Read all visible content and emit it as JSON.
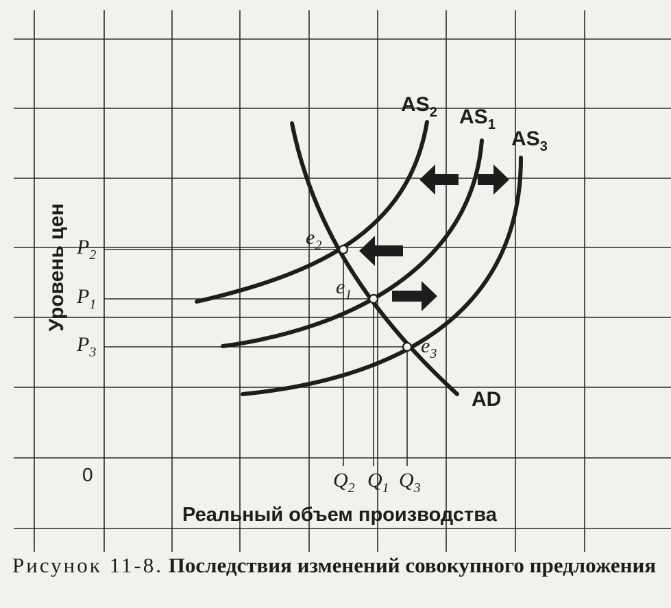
{
  "y_axis_label": "Уровень цен",
  "x_axis_label": "Реальный объем производства",
  "origin": "0",
  "price_levels": [
    {
      "sym": "P",
      "sub": "2"
    },
    {
      "sym": "P",
      "sub": "1"
    },
    {
      "sym": "P",
      "sub": "3"
    }
  ],
  "quantities": [
    {
      "sym": "Q",
      "sub": "2"
    },
    {
      "sym": "Q",
      "sub": "1"
    },
    {
      "sym": "Q",
      "sub": "3"
    }
  ],
  "curves": {
    "as2": {
      "sym": "AS",
      "sub": "2"
    },
    "as1": {
      "sym": "AS",
      "sub": "1"
    },
    "as3": {
      "sym": "AS",
      "sub": "3"
    },
    "ad": "AD"
  },
  "points": [
    {
      "sym": "e",
      "sub": "2"
    },
    {
      "sym": "e",
      "sub": "1"
    },
    {
      "sym": "e",
      "sub": "3"
    }
  ],
  "caption": {
    "label": "Рисунок 11-8.",
    "title": "Последствия изменений совокупного предложения"
  }
}
